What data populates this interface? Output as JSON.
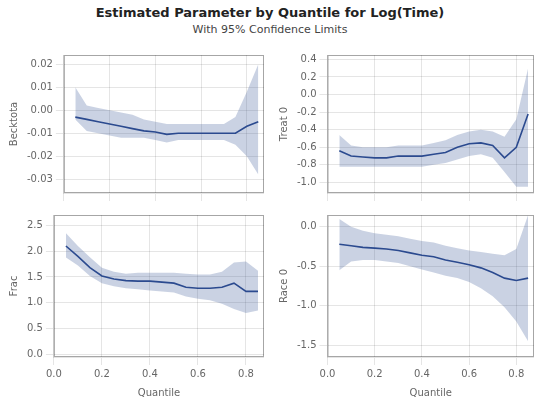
{
  "title": "Estimated Parameter by Quantile for Log(Time)",
  "subtitle": "With 95% Confidence Limits",
  "chart_data": [
    {
      "type": "line",
      "ylabel": "Becktota",
      "x": [
        0.05,
        0.1,
        0.15,
        0.2,
        0.25,
        0.3,
        0.35,
        0.4,
        0.45,
        0.5,
        0.55,
        0.6,
        0.65,
        0.7,
        0.75,
        0.8,
        0.85
      ],
      "series": [
        {
          "color": "#2b4a8f",
          "values": [
            -0.003,
            -0.004,
            -0.005,
            -0.006,
            -0.007,
            -0.008,
            -0.009,
            -0.0095,
            -0.0105,
            -0.01,
            -0.01,
            -0.01,
            -0.01,
            -0.01,
            -0.01,
            -0.007,
            -0.005
          ],
          "lower": [
            -0.004,
            -0.009,
            -0.01,
            -0.011,
            -0.012,
            -0.012,
            -0.012,
            -0.013,
            -0.014,
            -0.013,
            -0.013,
            -0.013,
            -0.013,
            -0.013,
            -0.015,
            -0.02,
            -0.028
          ],
          "upper": [
            0.01,
            0.002,
            0.001,
            0.0,
            -0.001,
            -0.002,
            -0.004,
            -0.005,
            -0.006,
            -0.006,
            -0.006,
            -0.006,
            -0.006,
            -0.006,
            -0.003,
            0.008,
            0.02
          ]
        }
      ],
      "xlim": [
        0.0,
        0.875
      ],
      "xticks": [
        {
          "value": 0.0,
          "label": "0.0"
        },
        0.2,
        0.4,
        0.6,
        0.8
      ],
      "ylim": [
        -0.036,
        0.024
      ],
      "yticks": [
        -0.03,
        -0.02,
        -0.01,
        {
          "value": 0.0,
          "label": "0.00"
        },
        0.01,
        0.02
      ],
      "grid": true,
      "tick_labels": "y"
    },
    {
      "type": "line",
      "ylabel": "Treat 0",
      "x": [
        0.05,
        0.1,
        0.15,
        0.2,
        0.25,
        0.3,
        0.35,
        0.4,
        0.45,
        0.5,
        0.55,
        0.6,
        0.65,
        0.7,
        0.75,
        0.8,
        0.85
      ],
      "series": [
        {
          "color": "#2b4a8f",
          "values": [
            -0.64,
            -0.7,
            -0.71,
            -0.72,
            -0.72,
            -0.7,
            -0.7,
            -0.7,
            -0.68,
            -0.66,
            -0.6,
            -0.56,
            -0.55,
            -0.58,
            -0.72,
            -0.6,
            -0.22
          ],
          "lower": [
            -0.82,
            -0.82,
            -0.82,
            -0.82,
            -0.82,
            -0.82,
            -0.82,
            -0.82,
            -0.8,
            -0.78,
            -0.74,
            -0.7,
            -0.68,
            -0.72,
            -0.88,
            -1.05,
            -1.05
          ],
          "upper": [
            -0.46,
            -0.58,
            -0.6,
            -0.6,
            -0.6,
            -0.58,
            -0.58,
            -0.58,
            -0.55,
            -0.52,
            -0.46,
            -0.42,
            -0.4,
            -0.42,
            -0.48,
            -0.28,
            0.3
          ]
        }
      ],
      "xlim": [
        0.0,
        0.875
      ],
      "xticks": [
        {
          "value": 0.0,
          "label": "0.0"
        },
        0.2,
        0.4,
        0.6,
        0.8
      ],
      "ylim": [
        -1.12,
        0.45
      ],
      "yticks": [
        {
          "value": -1.0,
          "label": "-1.0"
        },
        -0.8,
        -0.6,
        -0.4,
        -0.2,
        {
          "value": 0.0,
          "label": "0.0"
        },
        0.2,
        0.4
      ],
      "grid": true,
      "tick_labels": "y"
    },
    {
      "type": "line",
      "ylabel": "Frac",
      "xlabel": "Quantile",
      "x": [
        0.05,
        0.1,
        0.15,
        0.2,
        0.25,
        0.3,
        0.35,
        0.4,
        0.45,
        0.5,
        0.55,
        0.6,
        0.65,
        0.7,
        0.75,
        0.8,
        0.85
      ],
      "series": [
        {
          "color": "#2b4a8f",
          "values": [
            2.1,
            1.9,
            1.68,
            1.52,
            1.46,
            1.43,
            1.42,
            1.42,
            1.4,
            1.38,
            1.3,
            1.28,
            1.28,
            1.3,
            1.38,
            1.22,
            1.22
          ],
          "lower": [
            1.88,
            1.72,
            1.52,
            1.38,
            1.32,
            1.28,
            1.26,
            1.24,
            1.22,
            1.2,
            1.12,
            1.08,
            1.05,
            0.98,
            0.88,
            0.8,
            0.85
          ],
          "upper": [
            2.35,
            2.1,
            1.88,
            1.68,
            1.6,
            1.56,
            1.58,
            1.58,
            1.58,
            1.58,
            1.56,
            1.55,
            1.55,
            1.6,
            1.78,
            1.8,
            1.62
          ]
        }
      ],
      "xlim": [
        0.0,
        0.875
      ],
      "xticks": [
        {
          "value": 0.0,
          "label": "0.0"
        },
        0.2,
        0.4,
        0.6,
        0.8
      ],
      "ylim": [
        -0.05,
        2.7
      ],
      "yticks": [
        {
          "value": 0.0,
          "label": "0.0"
        },
        0.5,
        {
          "value": 1.0,
          "label": "1.0"
        },
        1.5,
        {
          "value": 2.0,
          "label": "2.0"
        },
        2.5
      ],
      "grid": true
    },
    {
      "type": "line",
      "ylabel": "Race 0",
      "xlabel": "Quantile",
      "x": [
        0.05,
        0.1,
        0.15,
        0.2,
        0.25,
        0.3,
        0.35,
        0.4,
        0.45,
        0.5,
        0.55,
        0.6,
        0.65,
        0.7,
        0.75,
        0.8,
        0.85
      ],
      "series": [
        {
          "color": "#2b4a8f",
          "values": [
            -0.22,
            -0.24,
            -0.26,
            -0.27,
            -0.28,
            -0.3,
            -0.33,
            -0.36,
            -0.38,
            -0.42,
            -0.45,
            -0.48,
            -0.52,
            -0.58,
            -0.65,
            -0.68,
            -0.65
          ],
          "lower": [
            -0.55,
            -0.44,
            -0.42,
            -0.42,
            -0.44,
            -0.46,
            -0.5,
            -0.54,
            -0.58,
            -0.62,
            -0.65,
            -0.7,
            -0.78,
            -0.88,
            -1.02,
            -1.2,
            -1.45
          ],
          "upper": [
            0.1,
            0.0,
            -0.05,
            -0.08,
            -0.1,
            -0.12,
            -0.15,
            -0.18,
            -0.2,
            -0.24,
            -0.27,
            -0.3,
            -0.32,
            -0.34,
            -0.36,
            -0.28,
            0.15
          ]
        }
      ],
      "xlim": [
        0.0,
        0.875
      ],
      "xticks": [
        {
          "value": 0.0,
          "label": "0.0"
        },
        0.2,
        0.4,
        0.6,
        0.8
      ],
      "ylim": [
        -1.65,
        0.15
      ],
      "yticks": [
        -1.5,
        {
          "value": -1.0,
          "label": "-1.0"
        },
        -0.5,
        {
          "value": 0.0,
          "label": "0.0"
        }
      ],
      "grid": true
    }
  ]
}
